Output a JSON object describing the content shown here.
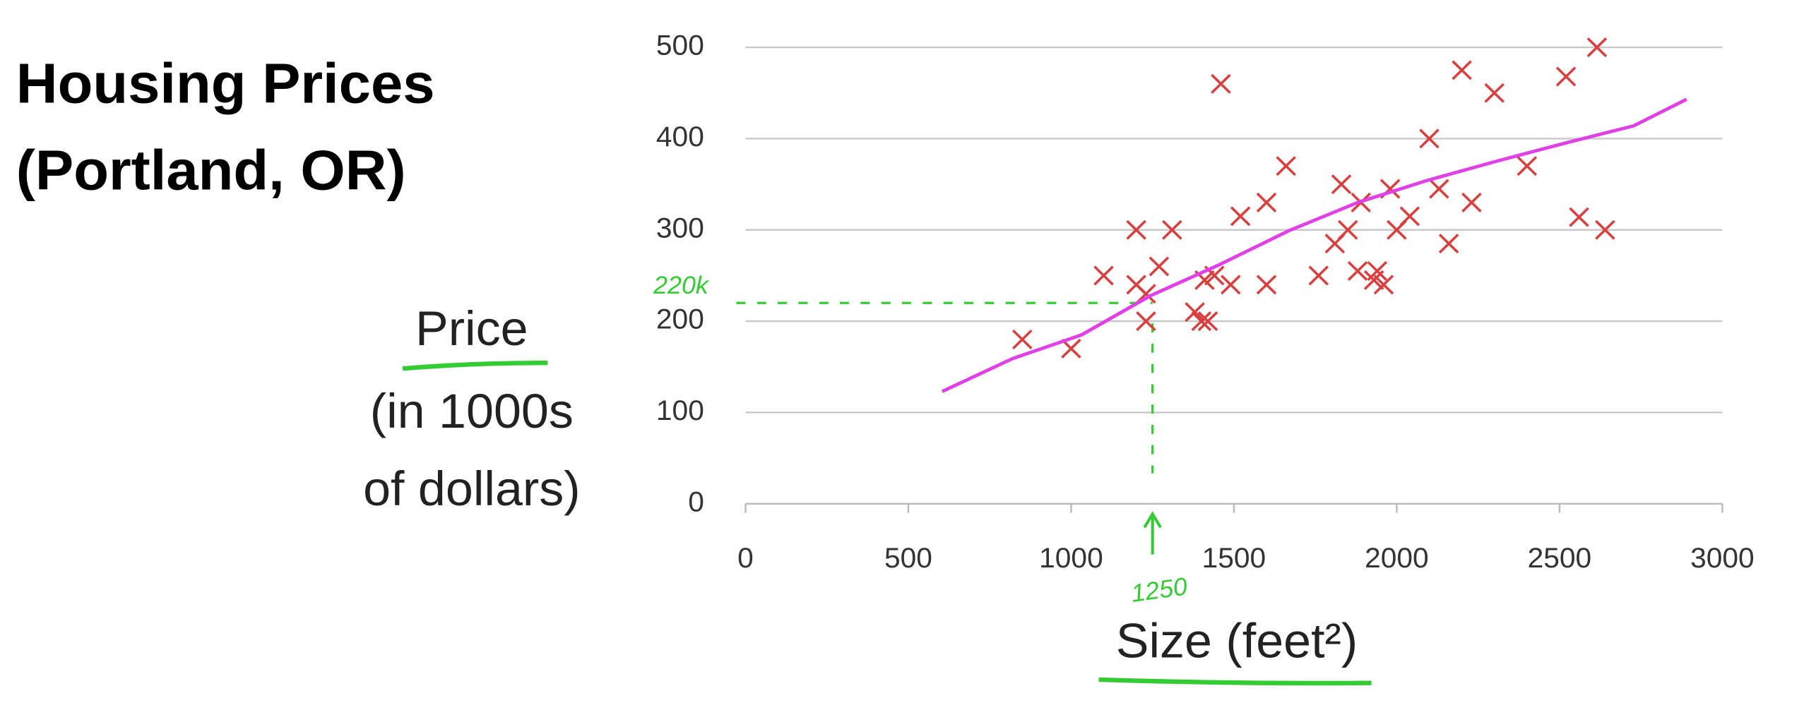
{
  "chart_data": {
    "type": "scatter",
    "title": [
      "Housing Prices",
      "(Portland, OR)"
    ],
    "ylabel": [
      "Price",
      "(in 1000s",
      "of dollars)"
    ],
    "xlabel": "Size (feet²)",
    "xlim": [
      0,
      3000
    ],
    "xticks": [
      0,
      500,
      1000,
      1500,
      2000,
      2500,
      3000
    ],
    "ylim": [
      0,
      500
    ],
    "yticks": [
      0,
      100,
      200,
      300,
      400,
      500
    ],
    "grid": true,
    "series": [
      {
        "type": "scatter",
        "color": "#d8403f",
        "x": [
          850,
          1000,
          1100,
          1200,
          1200,
          1230,
          1230,
          1270,
          1310,
          1380,
          1410,
          1400,
          1420,
          1440,
          1460,
          1490,
          1520,
          1600,
          1600,
          1660,
          1760,
          1810,
          1830,
          1850,
          1890,
          1880,
          1930,
          1940,
          1960,
          1980,
          2000,
          2040,
          2100,
          2130,
          2160,
          2200,
          2230,
          2300,
          2400,
          2520,
          2560,
          2615,
          2640
        ],
        "values": [
          180,
          170,
          250,
          300,
          240,
          230,
          200,
          260,
          300,
          210,
          245,
          200,
          200,
          250,
          460,
          240,
          315,
          330,
          240,
          370,
          250,
          285,
          350,
          300,
          330,
          255,
          245,
          255,
          240,
          345,
          300,
          315,
          400,
          345,
          285,
          475,
          330,
          450,
          370,
          468,
          314,
          500,
          300
        ]
      },
      {
        "type": "line",
        "color": "#e040e6",
        "x": [
          604,
          820,
          1032,
          1244,
          1456,
          1668,
          1880,
          2092,
          2304,
          2516,
          2728,
          2890
        ],
        "values": [
          123,
          159,
          185,
          228,
          262,
          299,
          330,
          354,
          375,
          395,
          414,
          443
        ]
      }
    ],
    "annotations": [
      {
        "text": "220k",
        "value": 220,
        "axis": "y"
      },
      {
        "text": "1250",
        "value": 1250,
        "axis": "x"
      }
    ]
  }
}
